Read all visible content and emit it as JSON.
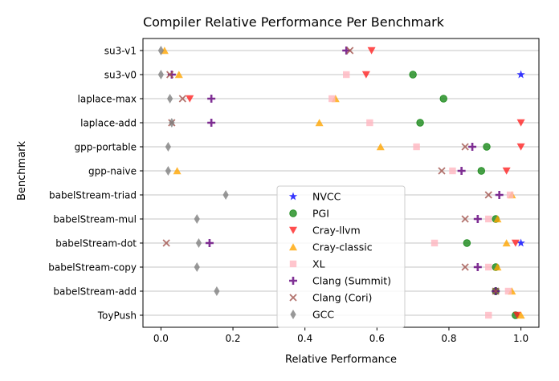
{
  "chart_data": {
    "type": "scatter",
    "title": "Compiler Relative Performance Per Benchmark",
    "xlabel": "Relative Performance",
    "ylabel": "Benchmark",
    "xlim": [
      -0.05,
      1.05
    ],
    "xticks": [
      0.0,
      0.2,
      0.4,
      0.6,
      0.8,
      1.0
    ],
    "xtick_labels": [
      "0.0",
      "0.2",
      "0.4",
      "0.6",
      "0.8",
      "1.0"
    ],
    "grid": "horizontal",
    "legend_position": "lower-center",
    "categories": [
      "su3-v1",
      "su3-v0",
      "laplace-max",
      "laplace-add",
      "gpp-portable",
      "gpp-naive",
      "babelStream-triad",
      "babelStream-mul",
      "babelStream-dot",
      "babelStream-copy",
      "babelStream-add",
      "ToyPush"
    ],
    "series": [
      {
        "name": "NVCC",
        "marker": "star",
        "color": "#1f1fff",
        "alpha": 0.9,
        "values": [
          null,
          1.0,
          null,
          null,
          null,
          null,
          null,
          null,
          1.0,
          null,
          null,
          null
        ]
      },
      {
        "name": "PGI",
        "marker": "circle",
        "color": "#1a8a1a",
        "alpha": 0.8,
        "values": [
          null,
          0.7,
          0.785,
          0.72,
          0.905,
          0.89,
          null,
          0.93,
          0.85,
          0.93,
          0.93,
          0.985
        ]
      },
      {
        "name": "Cray-llvm",
        "marker": "triangle-down",
        "color": "#ff2222",
        "alpha": 0.8,
        "values": [
          0.585,
          0.57,
          0.08,
          1.0,
          1.0,
          0.96,
          null,
          null,
          0.985,
          null,
          null,
          0.99
        ]
      },
      {
        "name": "Cray-classic",
        "marker": "triangle-up",
        "color": "#ffa500",
        "alpha": 0.8,
        "values": [
          0.01,
          0.05,
          0.485,
          0.44,
          0.61,
          0.045,
          0.975,
          0.935,
          0.96,
          0.935,
          0.975,
          1.0
        ]
      },
      {
        "name": "XL",
        "marker": "square",
        "color": "#ffb6c1",
        "alpha": 0.8,
        "values": [
          null,
          0.515,
          0.475,
          0.58,
          0.71,
          0.81,
          0.97,
          0.91,
          0.76,
          0.91,
          0.965,
          0.91
        ]
      },
      {
        "name": "Clang (Summit)",
        "marker": "plus",
        "color": "#6a0d83",
        "alpha": 0.85,
        "values": [
          0.515,
          0.03,
          0.14,
          0.14,
          0.865,
          0.835,
          0.94,
          0.88,
          0.135,
          0.88,
          0.93,
          null
        ]
      },
      {
        "name": "Clang (Cori)",
        "marker": "x",
        "color": "#a0504a",
        "alpha": 0.8,
        "values": [
          0.525,
          0.025,
          0.06,
          0.03,
          0.845,
          0.78,
          0.91,
          0.845,
          0.015,
          0.845,
          0.93,
          null
        ]
      },
      {
        "name": "GCC",
        "marker": "thin-diamond",
        "color": "#808080",
        "alpha": 0.8,
        "values": [
          0.0,
          0.0,
          0.025,
          0.03,
          0.02,
          0.02,
          0.18,
          0.1,
          0.105,
          0.1,
          0.155,
          null
        ]
      }
    ]
  }
}
